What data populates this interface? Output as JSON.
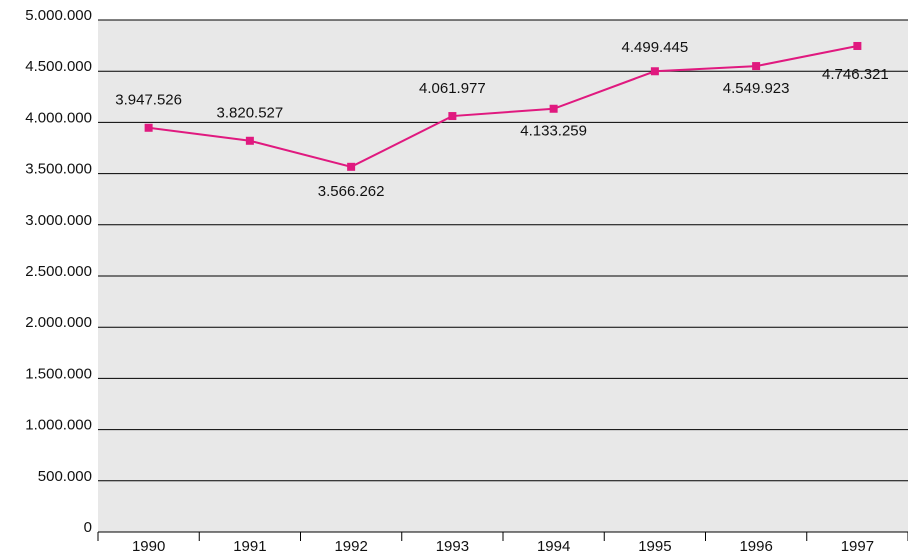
{
  "chart_data": {
    "type": "line",
    "categories": [
      "1990",
      "1991",
      "1992",
      "1993",
      "1994",
      "1995",
      "1996",
      "1997"
    ],
    "values": [
      3947526,
      3820527,
      3566262,
      4061977,
      4133259,
      4499445,
      4549923,
      4746321
    ],
    "value_labels": [
      "3.947.526",
      "3.820.527",
      "3.566.262",
      "4.061.977",
      "4.133.259",
      "4.499.445",
      "4.549.923",
      "4.746.321"
    ],
    "color": "#e0197f",
    "ylim": [
      0,
      5000000
    ],
    "yticks": [
      0,
      {
        "value": 500000,
        "label": "500.000"
      },
      {
        "value": 1000000,
        "label": "1.000.000"
      },
      {
        "value": 1500000,
        "label": "1.500.000"
      },
      {
        "value": 2000000,
        "label": "2.000.000"
      },
      {
        "value": 2500000,
        "label": "2.500.000"
      },
      {
        "value": 3000000,
        "label": "3.000.000"
      },
      {
        "value": 3500000,
        "label": "3.500.000"
      },
      {
        "value": 4000000,
        "label": "4.000.000"
      },
      {
        "value": 4500000,
        "label": "4.500.000"
      },
      {
        "value": 5000000,
        "label": "5.000.000"
      }
    ],
    "grid": true
  }
}
